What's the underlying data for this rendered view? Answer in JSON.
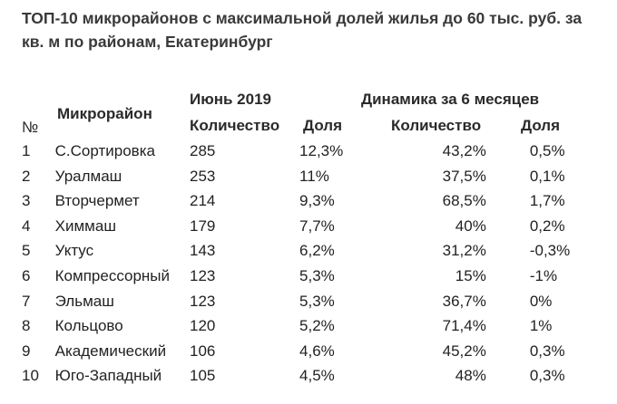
{
  "title": "ТОП-10 микрорайонов с максимальной долей жилья до 60 тыс. руб. за кв. м по районам, Екатеринбург",
  "headers": {
    "num": "№",
    "district": "Микрорайон",
    "june": "Июнь 2019",
    "dynamics": "Динамика за 6 месяцев",
    "count": "Количество",
    "share": "Доля",
    "dyn_count": "Количество",
    "dyn_share": "Доля"
  },
  "rows": [
    {
      "num": "1",
      "name": "С.Сортировка",
      "count": "285",
      "share": "12,3%",
      "dyn_count": "43,2%",
      "dyn_share": "0,5%"
    },
    {
      "num": "2",
      "name": "Уралмаш",
      "count": "253",
      "share": "11%",
      "dyn_count": "37,5%",
      "dyn_share": "0,1%"
    },
    {
      "num": "3",
      "name": "Вторчермет",
      "count": "214",
      "share": "9,3%",
      "dyn_count": "68,5%",
      "dyn_share": "1,7%"
    },
    {
      "num": "4",
      "name": "Химмаш",
      "count": "179",
      "share": "7,7%",
      "dyn_count": "40%",
      "dyn_share": "0,2%"
    },
    {
      "num": "5",
      "name": "Уктус",
      "count": "143",
      "share": "6,2%",
      "dyn_count": "31,2%",
      "dyn_share": "-0,3%"
    },
    {
      "num": "6",
      "name": "Компрессорный",
      "count": "123",
      "share": "5,3%",
      "dyn_count": "15%",
      "dyn_share": "-1%"
    },
    {
      "num": "7",
      "name": "Эльмаш",
      "count": "123",
      "share": "5,3%",
      "dyn_count": "36,7%",
      "dyn_share": "0%"
    },
    {
      "num": "8",
      "name": "Кольцово",
      "count": "120",
      "share": "5,2%",
      "dyn_count": "71,4%",
      "dyn_share": "1%"
    },
    {
      "num": "9",
      "name": "Академический",
      "count": "106",
      "share": "4,6%",
      "dyn_count": "45,2%",
      "dyn_share": "0,3%"
    },
    {
      "num": "10",
      "name": "Юго-Западный",
      "count": "105",
      "share": "4,5%",
      "dyn_count": "48%",
      "dyn_share": "0,3%"
    }
  ]
}
